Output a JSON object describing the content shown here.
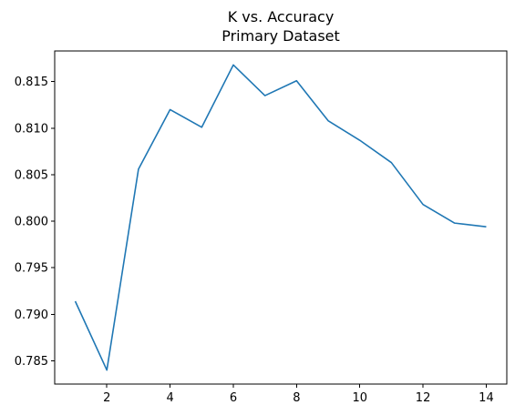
{
  "chart_data": {
    "type": "line",
    "title": "K vs. Accuracy",
    "subtitle": "Primary Dataset",
    "xlabel": "",
    "ylabel": "",
    "xlim": [
      0.35,
      14.65
    ],
    "ylim": [
      0.7825,
      0.8183
    ],
    "xticks": [
      2,
      4,
      6,
      8,
      10,
      12,
      14
    ],
    "xtick_labels": [
      "2",
      "4",
      "6",
      "8",
      "10",
      "12",
      "14"
    ],
    "yticks": [
      0.785,
      0.79,
      0.795,
      0.8,
      0.805,
      0.81,
      0.815
    ],
    "ytick_labels": [
      "0.785",
      "0.790",
      "0.795",
      "0.800",
      "0.805",
      "0.810",
      "0.815"
    ],
    "grid": false,
    "series": [
      {
        "color": "#1f77b4",
        "x": [
          1,
          2,
          3,
          4,
          5,
          6,
          7,
          8,
          9,
          10,
          11,
          12,
          13,
          14
        ],
        "values": [
          0.7914,
          0.784,
          0.8056,
          0.812,
          0.8101,
          0.8168,
          0.8135,
          0.8151,
          0.8108,
          0.8087,
          0.8063,
          0.8018,
          0.7998,
          0.7994
        ]
      }
    ]
  }
}
